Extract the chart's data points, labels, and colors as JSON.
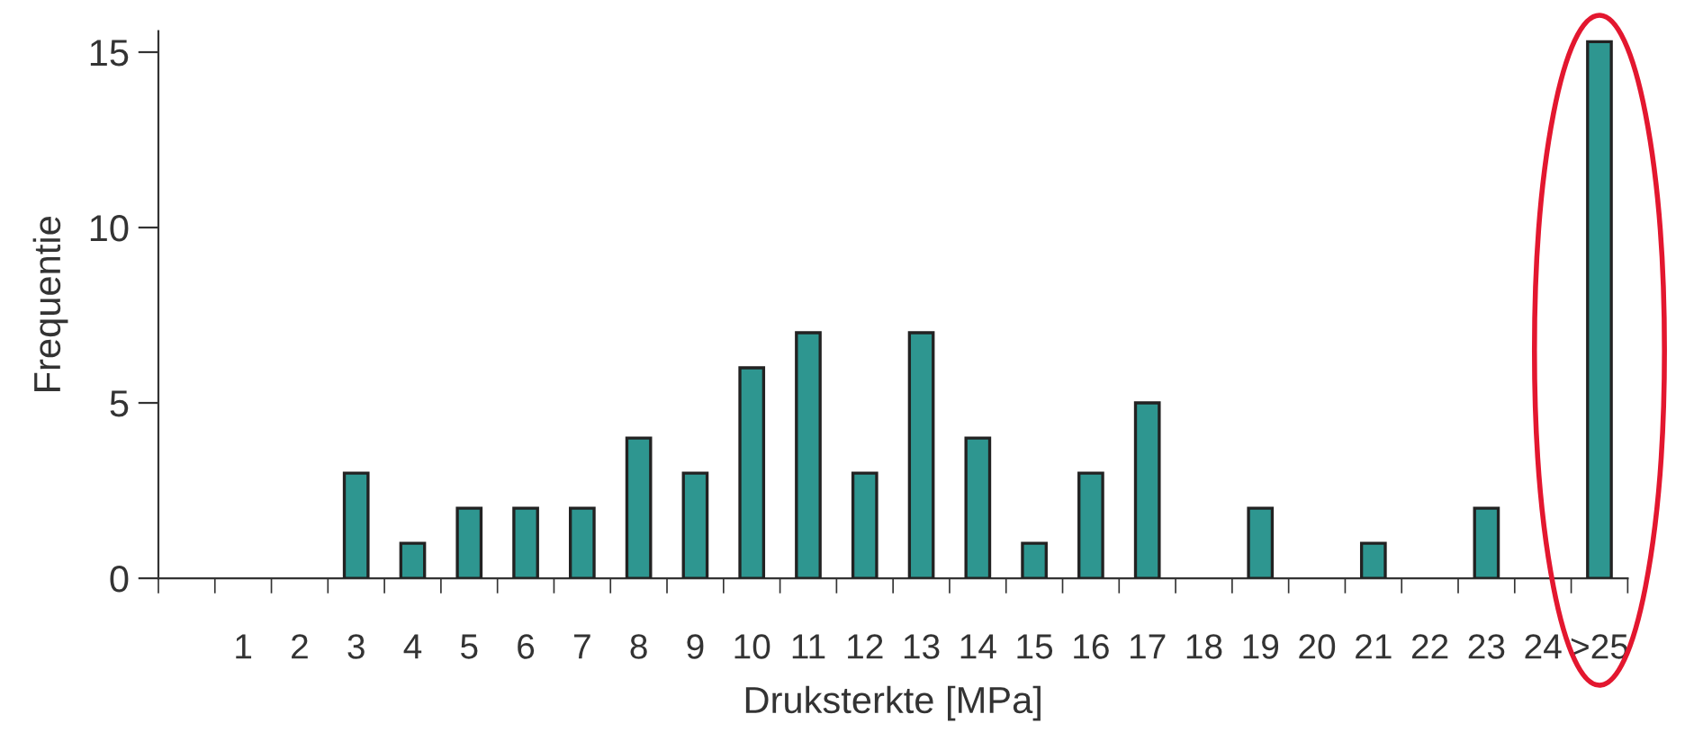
{
  "chart_data": {
    "type": "bar",
    "xlabel": "Druksterkte [MPa]",
    "ylabel": "Frequentie",
    "categories": [
      null,
      "1",
      "2",
      "3",
      "4",
      "5",
      "6",
      "7",
      "8",
      "9",
      "10",
      "11",
      "12",
      "13",
      "14",
      "15",
      "16",
      "17",
      "18",
      "19",
      "20",
      "21",
      "22",
      "23",
      "24",
      ">25"
    ],
    "values": [
      0,
      0,
      0,
      3,
      1,
      2,
      2,
      2,
      4,
      3,
      6,
      7,
      3,
      7,
      4,
      1,
      3,
      5,
      0,
      2,
      0,
      1,
      0,
      2,
      0,
      15.3
    ],
    "color": "#2e9690",
    "ylim": [
      0,
      15.6
    ],
    "yticks": [
      0,
      5,
      10,
      15
    ],
    "grid": false
  }
}
